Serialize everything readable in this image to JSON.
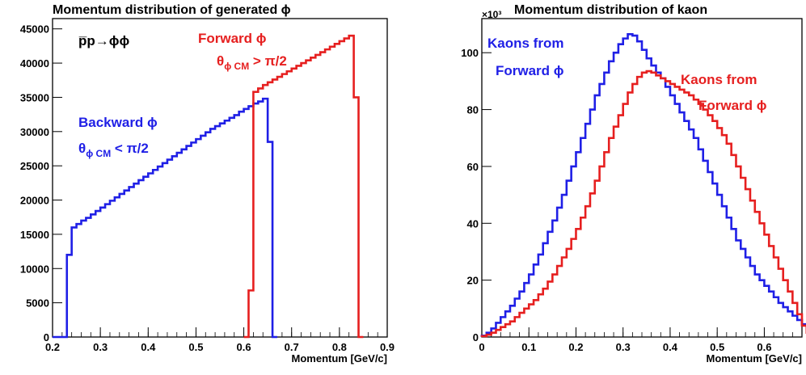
{
  "chart_data": [
    {
      "type": "line",
      "title": "Momentum distribution of generated ϕ",
      "xlabel": "Momentum [GeV/c]",
      "ylabel": "",
      "xlim": [
        0.2,
        0.9
      ],
      "ylim": [
        0,
        46500
      ],
      "x_ticks": [
        0.2,
        0.3,
        0.4,
        0.5,
        0.6,
        0.7,
        0.8,
        0.9
      ],
      "x_tick_labels": [
        "0.2",
        "0.3",
        "0.4",
        "0.5",
        "0.6",
        "0.7",
        "0.8",
        "0.9"
      ],
      "y_ticks": [
        0,
        5000,
        10000,
        15000,
        20000,
        25000,
        30000,
        35000,
        40000,
        45000
      ],
      "y_tick_labels": [
        "0",
        "5000",
        "10000",
        "15000",
        "20000",
        "25000",
        "30000",
        "35000",
        "40000",
        "45000"
      ],
      "bin_width": 0.01,
      "series": [
        {
          "name": "Backward ϕ",
          "color": "#1f1fe6",
          "x_start": 0.2,
          "values": [
            0,
            0,
            0,
            12000,
            16000,
            16500,
            17000,
            17400,
            17900,
            18400,
            18900,
            19400,
            19900,
            20400,
            20900,
            21400,
            21900,
            22400,
            22900,
            23400,
            23900,
            24400,
            24900,
            25400,
            25900,
            26400,
            26900,
            27400,
            27900,
            28400,
            28900,
            29400,
            29900,
            30400,
            30800,
            31200,
            31600,
            32000,
            32400,
            32900,
            33300,
            33700,
            34100,
            34400,
            34800,
            28500,
            0
          ]
        },
        {
          "name": "Forward ϕ",
          "color": "#e61f1f",
          "x_start": 0.6,
          "values": [
            0,
            6800,
            35800,
            36300,
            36800,
            37200,
            37600,
            38000,
            38400,
            38800,
            39200,
            39600,
            40000,
            40400,
            40800,
            41200,
            41600,
            42000,
            42400,
            42800,
            43200,
            43600,
            44000,
            35000,
            0
          ]
        }
      ],
      "annotations": [
        {
          "text_top": "p̅p→ϕϕ",
          "color": "#000000"
        },
        {
          "line1": "Forward ϕ",
          "line2_main": "θ",
          "line2_sub": "ϕ CM",
          "line2_rest": " > π/2",
          "color": "#e61f1f"
        },
        {
          "line1": "Backward ϕ",
          "line2_main": "θ",
          "line2_sub": "ϕ CM",
          "line2_rest": " < π/2",
          "color": "#1f1fe6"
        }
      ]
    },
    {
      "type": "line",
      "title": "Momentum distribution of kaon",
      "xlabel": "Momentum [GeV/c]",
      "ylabel": "",
      "y_multiplier": "×10³",
      "xlim": [
        0,
        0.68
      ],
      "ylim": [
        0,
        112
      ],
      "x_ticks": [
        0,
        0.1,
        0.2,
        0.3,
        0.4,
        0.5,
        0.6
      ],
      "x_tick_labels": [
        "0",
        "0.1",
        "0.2",
        "0.3",
        "0.4",
        "0.5",
        "0.6"
      ],
      "y_ticks": [
        0,
        20,
        40,
        60,
        80,
        100
      ],
      "y_tick_labels": [
        "0",
        "20",
        "40",
        "60",
        "80",
        "100"
      ],
      "bin_width": 0.01,
      "series": [
        {
          "name": "Kaons from Forward ϕ",
          "color": "#1f1fe6",
          "x_start": 0.0,
          "values": [
            0.5,
            1.5,
            3,
            5,
            7,
            9,
            11,
            13.5,
            16,
            19,
            22,
            25.5,
            29,
            33,
            37,
            41,
            45.5,
            50,
            55,
            60,
            65,
            70,
            75,
            80,
            85,
            89,
            93,
            97,
            100,
            103,
            105,
            106.5,
            106,
            104,
            101,
            98,
            95.5,
            93,
            91,
            88,
            85,
            82,
            79,
            76,
            73,
            70,
            66,
            62,
            58,
            54,
            50,
            46,
            42,
            38,
            34,
            31,
            28,
            25,
            22,
            20,
            18,
            16,
            14,
            12,
            10.5,
            9,
            7.5,
            6,
            4.5,
            3,
            1.5,
            0.5,
            0,
            0,
            0
          ]
        },
        {
          "name": "Kaons from Forward ϕ",
          "color": "#e61f1f",
          "x_start": 0.0,
          "values": [
            0.3,
            0.8,
            1.5,
            2.5,
            3.5,
            4.5,
            5.5,
            7,
            8.5,
            10,
            11.5,
            13,
            15,
            17,
            19.5,
            22,
            25,
            28,
            31,
            34.5,
            38,
            42,
            46,
            50.5,
            55,
            60,
            65,
            70,
            74,
            78,
            82,
            86,
            89,
            91.5,
            93,
            93.5,
            93,
            92,
            91,
            90,
            89,
            88,
            87,
            86,
            85,
            83.5,
            82,
            80,
            78,
            76,
            73.5,
            71,
            68,
            64,
            60,
            56,
            52,
            48,
            44,
            40,
            36,
            32,
            28,
            24,
            20,
            16,
            12,
            8,
            4,
            1.5,
            0.3,
            0,
            0,
            0,
            0
          ]
        }
      ],
      "annotations": [
        {
          "line1": "Kaons from",
          "line2": "Forward ϕ",
          "color": "#1f1fe6"
        },
        {
          "line1": "Kaons from",
          "line2": "Forward ϕ",
          "color": "#e61f1f"
        }
      ]
    }
  ]
}
